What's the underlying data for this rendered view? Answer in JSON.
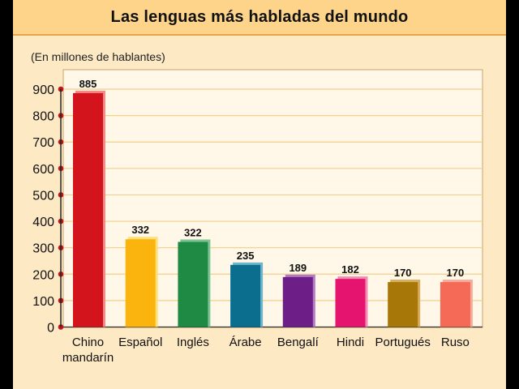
{
  "header": {
    "title": "Las lenguas más habladas del mundo"
  },
  "chart_data": {
    "type": "bar",
    "title": "Las lenguas más habladas del mundo",
    "ylabel": "(En millones de hablantes)",
    "xlabel": "",
    "ylim": [
      0,
      900
    ],
    "yticks": [
      0,
      100,
      200,
      300,
      400,
      500,
      600,
      700,
      800,
      900
    ],
    "grid": true,
    "categories": [
      [
        "Chino",
        "mandarín"
      ],
      [
        "Español"
      ],
      [
        "Inglés"
      ],
      [
        "Árabe"
      ],
      [
        "Bengalí"
      ],
      [
        "Hindi"
      ],
      [
        "Portugués"
      ],
      [
        "Ruso"
      ]
    ],
    "values": [
      885,
      332,
      322,
      235,
      189,
      182,
      170,
      170
    ],
    "colors": [
      "#d4141c",
      "#fbb40e",
      "#1f8a43",
      "#0b6e8f",
      "#6e1e87",
      "#e5146f",
      "#a77708",
      "#f46a56"
    ],
    "highlight_colors": [
      "#f38a88",
      "#fde07a",
      "#7dc394",
      "#6fb4cd",
      "#b07ac4",
      "#f58ab5",
      "#d6ae5e",
      "#f9aa98"
    ]
  }
}
